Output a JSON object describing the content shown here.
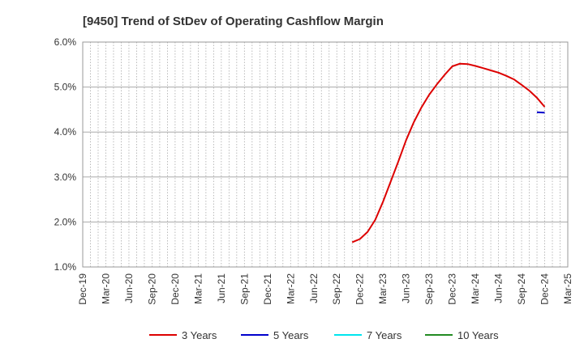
{
  "chart_data": {
    "type": "line",
    "title": "[9450]  Trend of StDev of Operating Cashflow Margin",
    "xlabel": "",
    "ylabel": "",
    "ylim": [
      1.0,
      6.0
    ],
    "yticks": [
      "1.0%",
      "2.0%",
      "3.0%",
      "4.0%",
      "5.0%",
      "6.0%"
    ],
    "x_categories": [
      "Dec-19",
      "Mar-20",
      "Jun-20",
      "Sep-20",
      "Dec-20",
      "Mar-21",
      "Jun-21",
      "Sep-21",
      "Dec-21",
      "Mar-22",
      "Jun-22",
      "Sep-22",
      "Dec-22",
      "Mar-23",
      "Jun-23",
      "Sep-23",
      "Dec-23",
      "Mar-24",
      "Jun-24",
      "Sep-24",
      "Dec-24",
      "Mar-25"
    ],
    "grid": true,
    "legend_position": "bottom",
    "series": [
      {
        "name": "3 Years",
        "color": "#dd0000",
        "points": [
          [
            "Nov-22",
            1.55
          ],
          [
            "Dec-22",
            1.62
          ],
          [
            "Jan-23",
            1.78
          ],
          [
            "Feb-23",
            2.05
          ],
          [
            "Mar-23",
            2.45
          ],
          [
            "Apr-23",
            2.9
          ],
          [
            "May-23",
            3.35
          ],
          [
            "Jun-23",
            3.82
          ],
          [
            "Jul-23",
            4.22
          ],
          [
            "Aug-23",
            4.55
          ],
          [
            "Sep-23",
            4.83
          ],
          [
            "Oct-23",
            5.06
          ],
          [
            "Nov-23",
            5.27
          ],
          [
            "Dec-23",
            5.46
          ],
          [
            "Jan-24",
            5.52
          ],
          [
            "Feb-24",
            5.51
          ],
          [
            "Mar-24",
            5.47
          ],
          [
            "Apr-24",
            5.42
          ],
          [
            "May-24",
            5.37
          ],
          [
            "Jun-24",
            5.32
          ],
          [
            "Jul-24",
            5.25
          ],
          [
            "Aug-24",
            5.17
          ],
          [
            "Sep-24",
            5.05
          ],
          [
            "Oct-24",
            4.92
          ],
          [
            "Nov-24",
            4.76
          ],
          [
            "Dec-24",
            4.56
          ]
        ]
      },
      {
        "name": "5 Years",
        "color": "#0000cc",
        "points": [
          [
            "Nov-24",
            4.44
          ],
          [
            "Dec-24",
            4.43
          ]
        ]
      },
      {
        "name": "7 Years",
        "color": "#00e5ee",
        "points": []
      },
      {
        "name": "10 Years",
        "color": "#228b22",
        "points": []
      }
    ]
  }
}
